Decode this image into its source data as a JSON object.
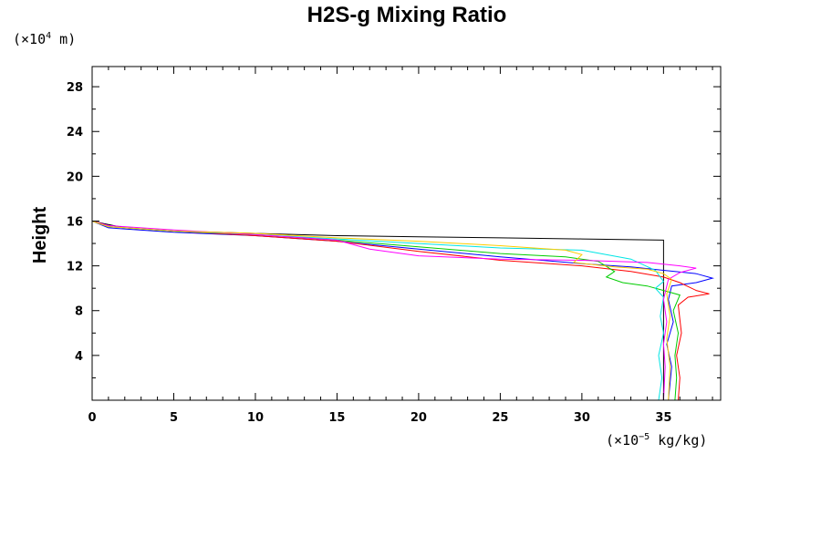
{
  "chart_data": {
    "type": "line",
    "title": "H2S-g Mixing Ratio",
    "ylabel": "Height",
    "xlabel": "",
    "x_unit": {
      "prefix": "(×10",
      "exp": "−5",
      "suffix": " kg/kg)"
    },
    "y_unit": {
      "prefix": "(×10",
      "exp": "4",
      "suffix": " m)"
    },
    "xlim": [
      0,
      38.5
    ],
    "ylim": [
      0,
      29.8
    ],
    "xticks": [
      0,
      5,
      10,
      15,
      20,
      25,
      30,
      35
    ],
    "xtick_labels": [
      "0",
      "5",
      "10",
      "15",
      "20",
      "25",
      "30",
      "35"
    ],
    "yticks": [
      4,
      8,
      12,
      16,
      20,
      24,
      28
    ],
    "ytick_labels": [
      "4",
      "8",
      "12",
      "16",
      "20",
      "24",
      "28"
    ],
    "grid": false,
    "series": [
      {
        "color": "#000000",
        "points": [
          [
            0,
            29.8
          ],
          [
            0,
            16.0
          ],
          [
            0.3,
            15.9
          ],
          [
            2,
            15.4
          ],
          [
            5,
            15.1
          ],
          [
            10,
            14.9
          ],
          [
            15,
            14.7
          ],
          [
            20,
            14.6
          ],
          [
            25,
            14.5
          ],
          [
            30,
            14.4
          ],
          [
            35,
            14.3
          ],
          [
            35,
            0
          ]
        ]
      },
      {
        "color": "#0000ff",
        "points": [
          [
            0,
            16.0
          ],
          [
            1,
            15.4
          ],
          [
            5,
            15.0
          ],
          [
            10,
            14.7
          ],
          [
            15,
            14.2
          ],
          [
            20,
            13.5
          ],
          [
            25,
            12.8
          ],
          [
            30,
            12.2
          ],
          [
            33,
            11.9
          ],
          [
            35,
            11.6
          ],
          [
            37,
            11.3
          ],
          [
            38,
            10.9
          ],
          [
            37,
            10.5
          ],
          [
            35.5,
            10.2
          ],
          [
            35.3,
            9.0
          ],
          [
            35.6,
            7.0
          ],
          [
            35.2,
            5.0
          ],
          [
            35.5,
            3.0
          ],
          [
            35.3,
            0
          ]
        ]
      },
      {
        "color": "#ff0000",
        "points": [
          [
            0,
            16.0
          ],
          [
            1,
            15.5
          ],
          [
            5,
            15.1
          ],
          [
            10,
            14.7
          ],
          [
            15,
            14.2
          ],
          [
            20,
            13.3
          ],
          [
            25,
            12.5
          ],
          [
            30,
            12.0
          ],
          [
            33,
            11.5
          ],
          [
            35,
            11.0
          ],
          [
            36,
            10.5
          ],
          [
            37,
            9.8
          ],
          [
            37.8,
            9.5
          ],
          [
            36.5,
            9.2
          ],
          [
            35.9,
            8.5
          ],
          [
            36.1,
            6.0
          ],
          [
            35.8,
            4.0
          ],
          [
            36.0,
            2.0
          ],
          [
            35.9,
            0
          ]
        ]
      },
      {
        "color": "#00cc00",
        "points": [
          [
            0,
            16.0
          ],
          [
            1,
            15.5
          ],
          [
            5,
            15.1
          ],
          [
            10,
            14.8
          ],
          [
            15,
            14.3
          ],
          [
            20,
            13.7
          ],
          [
            25,
            13.1
          ],
          [
            29,
            12.8
          ],
          [
            31,
            12.4
          ],
          [
            32,
            11.5
          ],
          [
            31.5,
            11.0
          ],
          [
            32.5,
            10.5
          ],
          [
            34,
            10.2
          ],
          [
            35,
            9.8
          ],
          [
            36,
            9.4
          ],
          [
            35.6,
            8.0
          ],
          [
            35.9,
            6.0
          ],
          [
            35.7,
            4.0
          ],
          [
            35.8,
            2.0
          ],
          [
            35.7,
            0
          ]
        ]
      },
      {
        "color": "#00e5e5",
        "points": [
          [
            0,
            16.0
          ],
          [
            1,
            15.5
          ],
          [
            5,
            15.1
          ],
          [
            10,
            14.8
          ],
          [
            15,
            14.4
          ],
          [
            20,
            14.0
          ],
          [
            25,
            13.6
          ],
          [
            30,
            13.4
          ],
          [
            33,
            12.6
          ],
          [
            34.5,
            11.6
          ],
          [
            35,
            10.6
          ],
          [
            34.5,
            10.0
          ],
          [
            35,
            9.2
          ],
          [
            34.8,
            7.5
          ],
          [
            35.0,
            6.0
          ],
          [
            34.7,
            4.0
          ],
          [
            34.9,
            2.0
          ],
          [
            34.7,
            0
          ]
        ]
      },
      {
        "color": "#ff00ff",
        "points": [
          [
            0,
            29.8
          ],
          [
            0,
            16.0
          ],
          [
            1,
            15.6
          ],
          [
            5,
            15.2
          ],
          [
            10,
            14.8
          ],
          [
            15,
            14.3
          ],
          [
            17,
            13.5
          ],
          [
            20,
            12.9
          ],
          [
            25,
            12.6
          ],
          [
            30,
            12.5
          ],
          [
            34,
            12.3
          ],
          [
            36,
            12.0
          ],
          [
            37,
            11.8
          ],
          [
            36,
            11.4
          ],
          [
            35.3,
            10.8
          ],
          [
            35.0,
            9.0
          ],
          [
            35.2,
            7.0
          ],
          [
            35.0,
            5.0
          ],
          [
            35.1,
            3.0
          ],
          [
            35.0,
            0
          ]
        ]
      },
      {
        "color": "#ffcc00",
        "points": [
          [
            0,
            16.0
          ],
          [
            1,
            15.5
          ],
          [
            5,
            15.1
          ],
          [
            10,
            14.9
          ],
          [
            15,
            14.5
          ],
          [
            20,
            14.2
          ],
          [
            25,
            13.8
          ],
          [
            29,
            13.4
          ],
          [
            30,
            13.0
          ],
          [
            29.5,
            12.3
          ],
          [
            32,
            11.9
          ],
          [
            34,
            11.7
          ],
          [
            35,
            11.3
          ],
          [
            35.5,
            10.8
          ],
          [
            35.2,
            9.5
          ],
          [
            35.4,
            7.5
          ],
          [
            35.2,
            5.5
          ],
          [
            35.4,
            3.0
          ],
          [
            35.3,
            0
          ]
        ]
      }
    ]
  }
}
